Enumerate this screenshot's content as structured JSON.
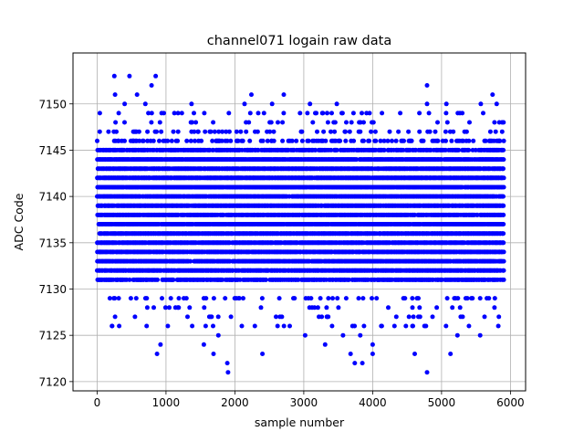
{
  "chart_data": {
    "type": "scatter",
    "title": "channel071 logain raw data",
    "xlabel": "sample number",
    "ylabel": "ADC Code",
    "xlim": [
      -350,
      6220
    ],
    "ylim": [
      7119,
      7155.5
    ],
    "xticks": [
      0,
      1000,
      2000,
      3000,
      4000,
      5000,
      6000
    ],
    "yticks": [
      7120,
      7125,
      7130,
      7135,
      7140,
      7145,
      7150
    ],
    "xtick_labels": [
      "0",
      "1000",
      "2000",
      "3000",
      "4000",
      "5000",
      "6000"
    ],
    "ytick_labels": [
      "7120",
      "7125",
      "7130",
      "7135",
      "7140",
      "7145",
      "7150"
    ],
    "grid": true,
    "marker_color": "#0000ff",
    "series": [
      {
        "n_samples": 5900,
        "x_range": [
          0,
          5900
        ],
        "dense_value_range": [
          7131,
          7145
        ],
        "sparse_values": [
          7126,
          7127,
          7128,
          7129,
          7146,
          7147,
          7148,
          7149
        ],
        "outliers": [
          {
            "x": 250,
            "y": 7153
          },
          {
            "x": 470,
            "y": 7153
          },
          {
            "x": 850,
            "y": 7153
          },
          {
            "x": 790,
            "y": 7152
          },
          {
            "x": 4790,
            "y": 7152
          },
          {
            "x": 260,
            "y": 7151
          },
          {
            "x": 580,
            "y": 7151
          },
          {
            "x": 2240,
            "y": 7151
          },
          {
            "x": 2710,
            "y": 7151
          },
          {
            "x": 5740,
            "y": 7151
          },
          {
            "x": 400,
            "y": 7150
          },
          {
            "x": 700,
            "y": 7150
          },
          {
            "x": 1370,
            "y": 7150
          },
          {
            "x": 2140,
            "y": 7150
          },
          {
            "x": 2540,
            "y": 7150
          },
          {
            "x": 3090,
            "y": 7150
          },
          {
            "x": 3480,
            "y": 7150
          },
          {
            "x": 4790,
            "y": 7150
          },
          {
            "x": 5070,
            "y": 7150
          },
          {
            "x": 5570,
            "y": 7150
          },
          {
            "x": 5800,
            "y": 7150
          },
          {
            "x": 1760,
            "y": 7125
          },
          {
            "x": 3020,
            "y": 7125
          },
          {
            "x": 3570,
            "y": 7125
          },
          {
            "x": 3820,
            "y": 7125
          },
          {
            "x": 5230,
            "y": 7125
          },
          {
            "x": 5560,
            "y": 7125
          },
          {
            "x": 1550,
            "y": 7124
          },
          {
            "x": 3310,
            "y": 7124
          },
          {
            "x": 4000,
            "y": 7124
          },
          {
            "x": 920,
            "y": 7124
          },
          {
            "x": 870,
            "y": 7123
          },
          {
            "x": 1690,
            "y": 7123
          },
          {
            "x": 2400,
            "y": 7123
          },
          {
            "x": 3680,
            "y": 7123
          },
          {
            "x": 4000,
            "y": 7123
          },
          {
            "x": 4610,
            "y": 7123
          },
          {
            "x": 5130,
            "y": 7123
          },
          {
            "x": 1890,
            "y": 7122
          },
          {
            "x": 3740,
            "y": 7122
          },
          {
            "x": 3850,
            "y": 7122
          },
          {
            "x": 1900,
            "y": 7121
          },
          {
            "x": 4790,
            "y": 7121
          }
        ]
      }
    ]
  }
}
